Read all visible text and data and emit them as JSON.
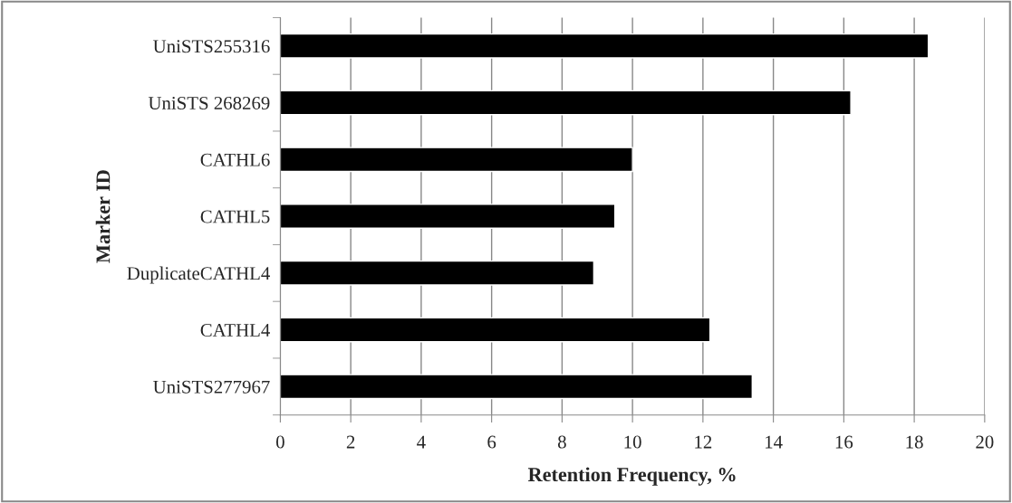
{
  "chart_data": {
    "type": "bar",
    "orientation": "horizontal",
    "categories": [
      "UniSTS255316",
      "UniSTS 268269",
      "CATHL6",
      "CATHL5",
      "DuplicateCATHL4",
      "CATHL4",
      "UniSTS277967"
    ],
    "values": [
      18.4,
      16.2,
      10.0,
      9.5,
      8.9,
      12.2,
      13.4
    ],
    "color": "#000000",
    "xlabel": "Retention Frequency, %",
    "ylabel": "Marker ID",
    "xlim": [
      0,
      20
    ],
    "xticks": [
      0,
      2,
      4,
      6,
      8,
      10,
      12,
      14,
      16,
      18,
      20
    ],
    "grid": "x"
  }
}
